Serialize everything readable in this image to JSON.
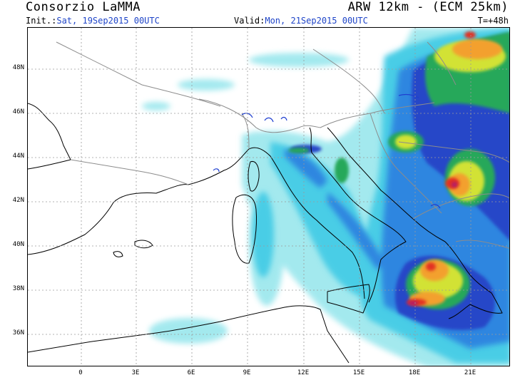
{
  "header": {
    "title_left": "Consorzio LaMMA",
    "title_right": "ARW 12km - (ECM 25km)",
    "init_label": "Init.:",
    "init_value": "Sat, 19Sep2015 00UTC",
    "valid_label": "Valid:",
    "valid_value": "Mon, 21Sep2015 00UTC",
    "forecast_step": "T=+48h"
  },
  "map": {
    "y_axis_labels": [
      "48N",
      "46N",
      "44N",
      "42N",
      "40N",
      "38N",
      "36N"
    ],
    "x_axis_labels": [
      "0",
      "3E",
      "6E",
      "9E",
      "12E",
      "15E",
      "18E",
      "21E"
    ],
    "colors": {
      "coast": "#000000",
      "borders": "#8c8c8c",
      "grid": "#9a9a9a",
      "lakes": "#1f3fd0",
      "precip_scale": [
        "#9fe8ee",
        "#48cde6",
        "#2f86e0",
        "#2746c8",
        "#25a85a",
        "#d2e234",
        "#f3a02d",
        "#e23024",
        "#b21a6a"
      ]
    }
  }
}
